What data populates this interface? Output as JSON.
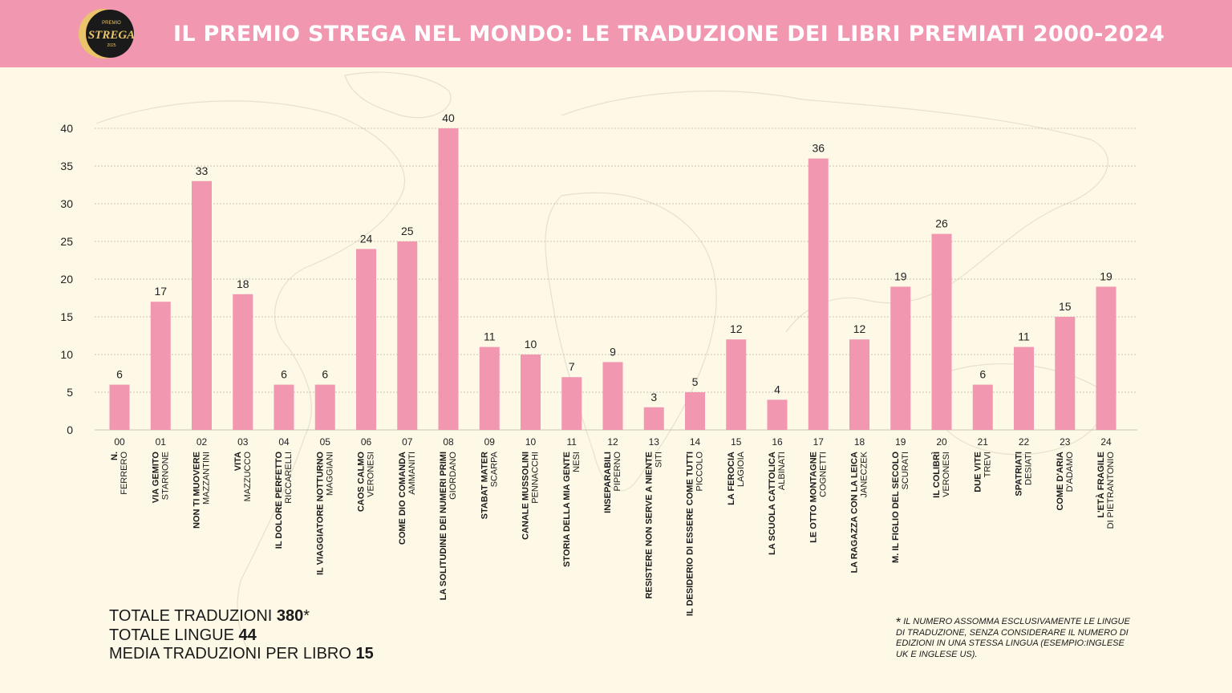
{
  "header": {
    "title": "IL PREMIO STREGA NEL MONDO: LE TRADUZIONE DEI LIBRI PREMIATI 2000-2024",
    "logo": {
      "top": "PREMIO",
      "main": "STREGA",
      "year": "2025"
    }
  },
  "colors": {
    "header_bg": "#f197b0",
    "bar": "#f197b0",
    "background": "#fdf9e6",
    "logo_bg": "#1a1a1a",
    "logo_gold": "#e9c46a"
  },
  "chart_data": {
    "type": "bar",
    "title": "IL PREMIO STREGA NEL MONDO: LE TRADUZIONE DEI LIBRI PREMIATI 2000-2024",
    "ylim": [
      0,
      40
    ],
    "yticks": [
      0,
      5,
      10,
      15,
      20,
      25,
      30,
      35,
      40
    ],
    "grid": true,
    "categories": [
      "00",
      "01",
      "02",
      "03",
      "04",
      "05",
      "06",
      "07",
      "08",
      "09",
      "10",
      "11",
      "12",
      "13",
      "14",
      "15",
      "16",
      "17",
      "18",
      "19",
      "20",
      "21",
      "22",
      "23",
      "24"
    ],
    "values": [
      6,
      17,
      33,
      18,
      6,
      6,
      24,
      25,
      40,
      11,
      10,
      7,
      9,
      3,
      5,
      12,
      4,
      36,
      12,
      19,
      26,
      6,
      11,
      15,
      19
    ],
    "books": [
      {
        "title": "N.",
        "author": "FERRERO"
      },
      {
        "title": "VIA GEMITO",
        "author": "STARNONE"
      },
      {
        "title": "NON TI MUOVERE",
        "author": "MAZZANTINI"
      },
      {
        "title": "VITA",
        "author": "MAZZUCCO"
      },
      {
        "title": "IL DOLORE PERFETTO",
        "author": "RICCARELLI"
      },
      {
        "title": "IL VIAGGIATORE NOTTURNO",
        "author": "MAGGIANI"
      },
      {
        "title": "CAOS CALMO",
        "author": "VERONESI"
      },
      {
        "title": "COME DIO COMANDA",
        "author": "AMMANITI"
      },
      {
        "title": "LA SOLITUDINE DEI NUMERI PRIMI",
        "author": "GIORDANO"
      },
      {
        "title": "STABAT MATER",
        "author": "SCARPA"
      },
      {
        "title": "CANALE MUSSOLINI",
        "author": "PENNACCHI"
      },
      {
        "title": "STORIA DELLA MIA GENTE",
        "author": "NESI"
      },
      {
        "title": "INSEPARABILI",
        "author": "PIPERNO"
      },
      {
        "title": "RESISTERE NON SERVE A NIENTE",
        "author": "SITI"
      },
      {
        "title": "IL DESIDERIO DI ESSERE COME TUTTI",
        "author": "PICCOLO"
      },
      {
        "title": "LA FEROCIA",
        "author": "LAGIOIA"
      },
      {
        "title": "LA SCUOLA CATTOLICA",
        "author": "ALBINATI"
      },
      {
        "title": "LE OTTO MONTAGNE",
        "author": "COGNETTI"
      },
      {
        "title": "LA RAGAZZA CON LA LEICA",
        "author": "JANECZEK"
      },
      {
        "title": "M. IL FIGLIO DEL SECOLO",
        "author": "SCURATI"
      },
      {
        "title": "IL COLIBRÌ",
        "author": "VERONESI"
      },
      {
        "title": "DUE VITE",
        "author": "TREVI"
      },
      {
        "title": "SPATRIATI",
        "author": "DESIATI"
      },
      {
        "title": "COME D'ARIA",
        "author": "D'ADAMO"
      },
      {
        "title": "L'ETÀ FRAGILE",
        "author": "DI PIETRANTONIO"
      }
    ]
  },
  "totals": {
    "translations_label": "TOTALE TRADUZIONI",
    "translations_value": "380",
    "translations_mark": "*",
    "languages_label": "TOTALE LINGUE",
    "languages_value": "44",
    "average_label": "MEDIA TRADUZIONI PER LIBRO",
    "average_value": "15"
  },
  "footnote": {
    "mark": "*",
    "text": "IL NUMERO ASSOMMA ESCLUSIVAMENTE LE LINGUE DI TRADUZIONE, SENZA CONSIDERARE IL NUMERO DI EDIZIONI IN UNA STESSA LINGUA (ESEMPIO:INGLESE UK E INGLESE US)."
  }
}
